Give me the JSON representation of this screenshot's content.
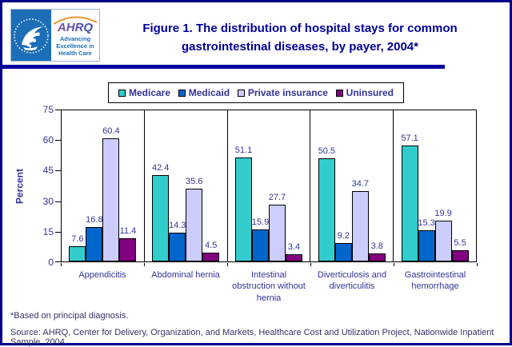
{
  "page": {
    "background": "#FFFFFF",
    "border_color": "#00008B",
    "divider_color": "#0000A0"
  },
  "header": {
    "title_lines": [
      "Figure 1. The distribution of hospital stays for common",
      "gastrointestinal diseases, by payer, 2004*"
    ],
    "logo": {
      "ahrq_acronym": "AHRQ",
      "tagline_lines": [
        "Advancing",
        "Excellence in",
        "Health Care"
      ],
      "hhs_color": "#1C6EB7",
      "arc_color": "#E8952F"
    }
  },
  "chart_data": {
    "type": "bar",
    "categories": [
      "Appendicitis",
      "Abdominal hernia",
      "Intestinal obstruction without hernia",
      "Diverticulosis and diverticulitis",
      "Gastrointestinal hemorrhage"
    ],
    "series": [
      {
        "name": "Medicare",
        "color": "#33CCCC",
        "values": [
          7.6,
          42.4,
          51.1,
          50.5,
          57.1
        ]
      },
      {
        "name": "Medicaid",
        "color": "#0066CC",
        "values": [
          16.8,
          14.3,
          15.9,
          9.2,
          15.3
        ]
      },
      {
        "name": "Private insurance",
        "color": "#CCCCFF",
        "values": [
          60.4,
          35.6,
          27.7,
          34.7,
          19.9
        ]
      },
      {
        "name": "Uninsured",
        "color": "#800080",
        "values": [
          11.4,
          4.5,
          3.4,
          3.8,
          5.5
        ]
      }
    ],
    "ylabel": "Percent",
    "xlabel": "",
    "ylim": [
      0,
      75
    ],
    "yticks": [
      0,
      15,
      30,
      45,
      60,
      75
    ],
    "grid": "off",
    "legend_position": "top",
    "bar_labels": "shown, one decimal"
  },
  "footnotes": {
    "note": "*Based on principal diagnosis.",
    "source": "Source: AHRQ, Center for Delivery, Organization, and Markets, Healthcare Cost and Utilization Project, Nationwide Inpatient Sample, 2004."
  }
}
